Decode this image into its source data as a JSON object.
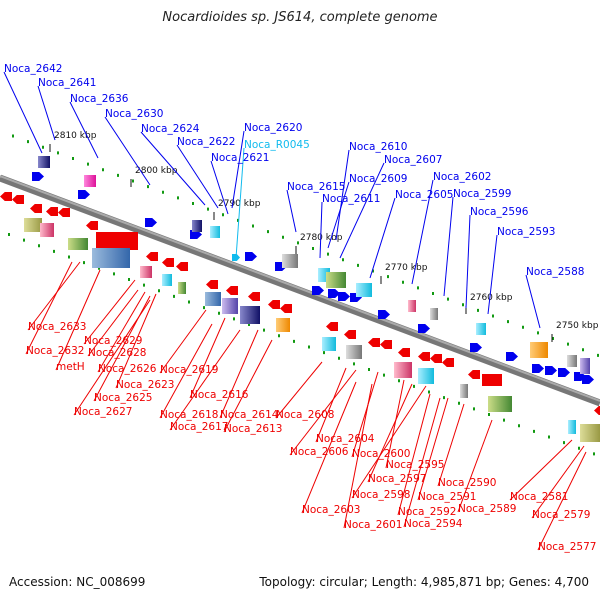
{
  "title": "Nocardioides sp. JS614, complete genome",
  "footer": {
    "accession": "Accession: NC_008699",
    "summary": "Topology: circular; Length: 4,985,871 bp; Genes: 4,700"
  },
  "colors": {
    "forward": "#0000ee",
    "reverse": "#ee0000",
    "rna": "#11bbee",
    "backbone": "#888888",
    "tick": "#119911"
  },
  "ticks": [
    "2810 kbp",
    "2800 kbp",
    "2790 kbp",
    "2780 kbp",
    "2770 kbp",
    "2760 kbp",
    "2750 kbp"
  ],
  "labels_top": [
    "Noca_2642",
    "Noca_2641",
    "Noca_2636",
    "Noca_2630",
    "Noca_2624",
    "Noca_2622",
    "Noca_2620",
    "Noca_R0045",
    "Noca_2621",
    "Noca_2610",
    "Noca_2607",
    "Noca_2615",
    "Noca_2609",
    "Noca_2611",
    "Noca_2605",
    "Noca_2602",
    "Noca_2599",
    "Noca_2596",
    "Noca_2593",
    "Noca_2588"
  ],
  "labels_bottom": [
    "Noca_2633",
    "Noca_2632",
    "metH",
    "Noca_2629",
    "Noca_2628",
    "Noca_2626",
    "Noca_2623",
    "Noca_2625",
    "Noca_2627",
    "Noca_2619",
    "Noca_2616",
    "Noca_2618",
    "Noca_2617",
    "Noca_2614",
    "Noca_2613",
    "Noca_2608",
    "Noca_2604",
    "Noca_2606",
    "Noca_2600",
    "Noca_2595",
    "Noca_2597",
    "Noca_2598",
    "Noca_2603",
    "Noca_2601",
    "Noca_2591",
    "Noca_2592",
    "Noca_2594",
    "Noca_2590",
    "Noca_2589",
    "Noca_2581",
    "Noca_2579",
    "Noca_2577"
  ]
}
